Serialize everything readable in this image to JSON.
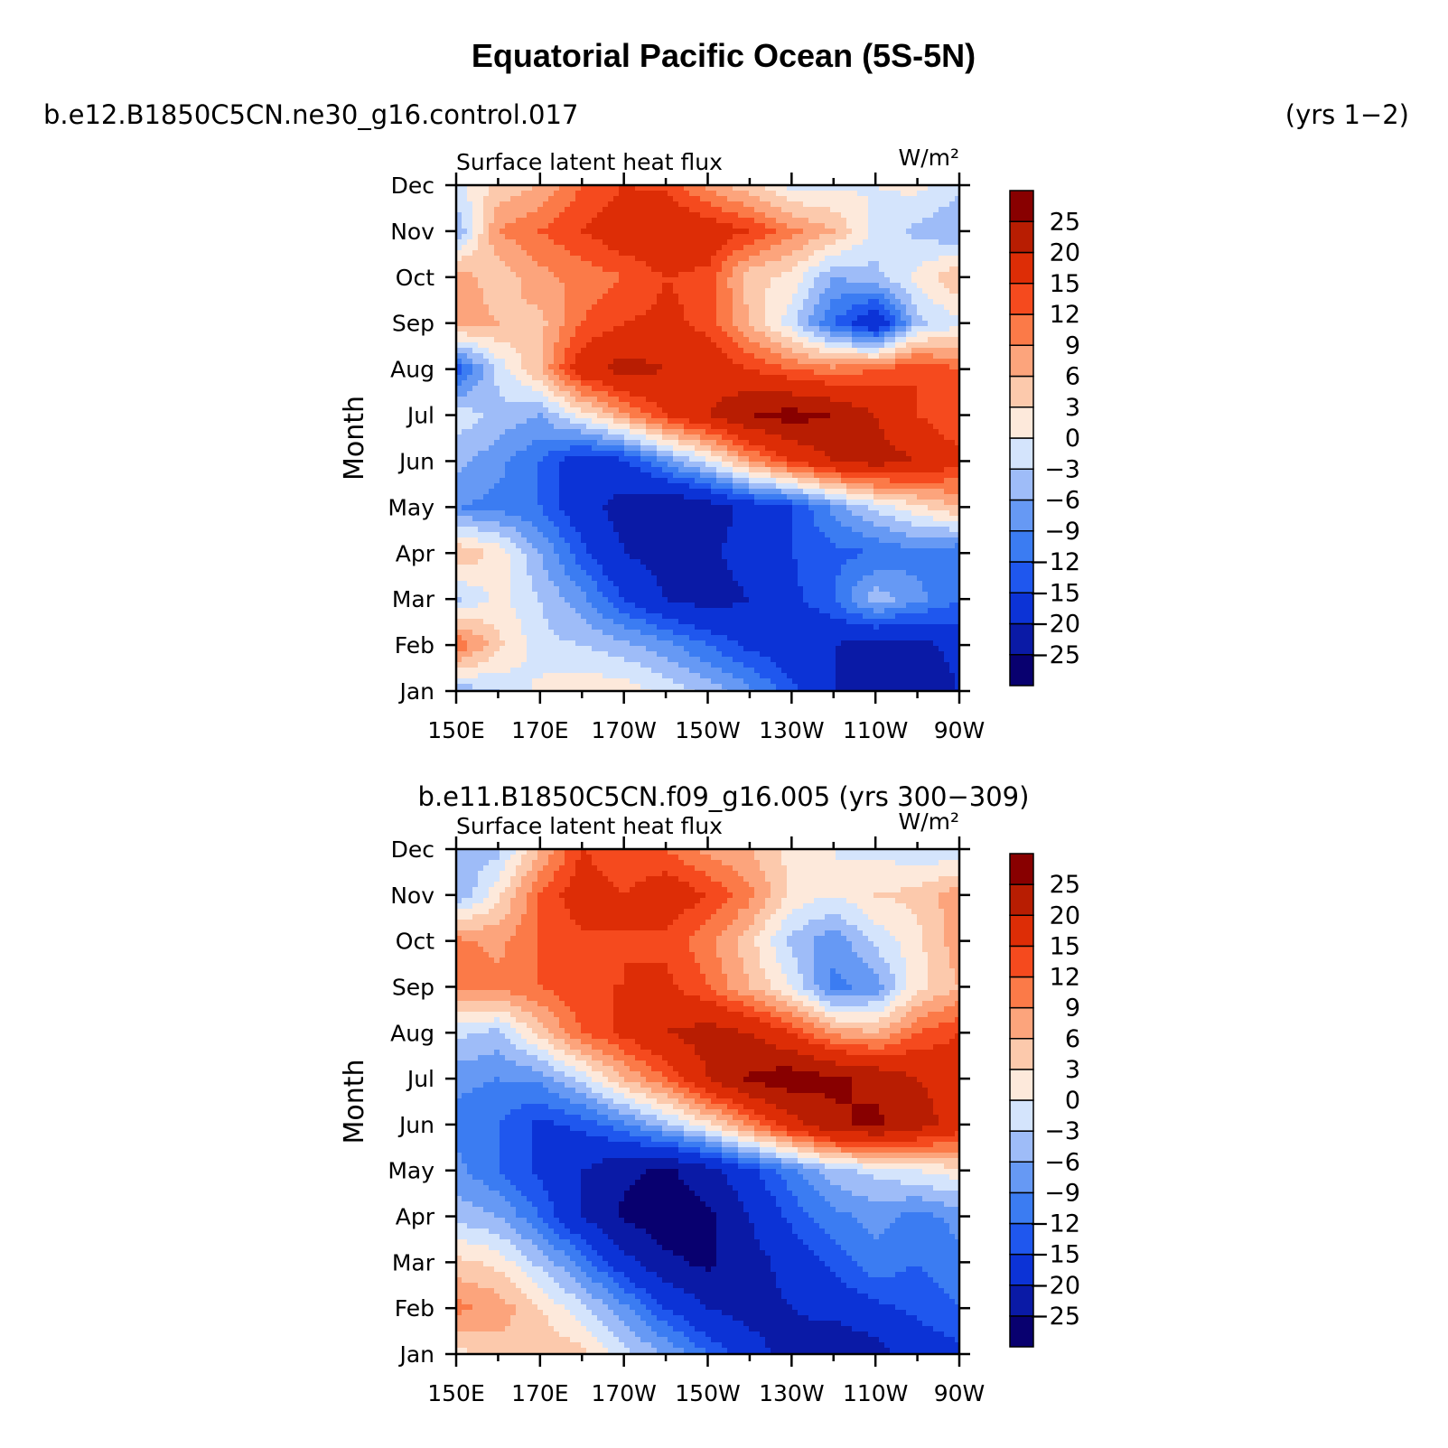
{
  "figure": {
    "title": "Equatorial Pacific Ocean (5S-5N)",
    "case1_label": "b.e12.B1850C5CN.ne30_g16.control.017",
    "case1_years": "(yrs 1−2)",
    "case2_label": "b.e11.B1850C5CN.f09_g16.005 (yrs 300−309)"
  },
  "chart_data": [
    {
      "type": "heatmap",
      "title": "Surface latent heat flux",
      "units": "W/m²",
      "ylabel": "Month",
      "xlabel": "",
      "x_tick_labels": [
        "150E",
        "170E",
        "170W",
        "150W",
        "130W",
        "110W",
        "90W"
      ],
      "y_tick_labels": [
        "Jan",
        "Feb",
        "Mar",
        "Apr",
        "May",
        "Jun",
        "Jul",
        "Aug",
        "Sep",
        "Oct",
        "Nov",
        "Dec"
      ],
      "xlim_deg_east": [
        150,
        270
      ],
      "levels": [
        -25,
        -20,
        -15,
        -12,
        -9,
        -6,
        -3,
        0,
        3,
        6,
        9,
        12,
        15,
        20,
        25
      ],
      "level_labels": [
        "−25",
        "−20",
        "−15",
        "−12",
        "−9",
        "−6",
        "−3",
        "0",
        "3",
        "6",
        "9",
        "12",
        "15",
        "20",
        "25"
      ],
      "colors": [
        "#08006f",
        "#0a1aa6",
        "#0c33d6",
        "#1f57ee",
        "#3b7cf2",
        "#6699f4",
        "#9ebcf8",
        "#d4e4fc",
        "#fde9db",
        "#fcc9ac",
        "#fca47c",
        "#fb7a48",
        "#f54a1e",
        "#dd2d06",
        "#b81d02",
        "#880000"
      ],
      "approx_values_rows_jan_to_dec_cols_150E_to_90W": [
        [
          -5,
          -3,
          1,
          2,
          2,
          -1,
          -4,
          -8,
          -14,
          -20,
          -25,
          -24,
          -20
        ],
        [
          12,
          4,
          -2,
          -3,
          -5,
          -8,
          -12,
          -16,
          -18,
          -20,
          -22,
          -22,
          -18
        ],
        [
          -4,
          1,
          -3,
          -8,
          -15,
          -20,
          -22,
          -20,
          -16,
          -12,
          -4,
          -8,
          -12
        ],
        [
          6,
          2,
          -6,
          -14,
          -20,
          -22,
          -21,
          -18,
          -15,
          -13,
          -12,
          -10,
          -12
        ],
        [
          -9,
          -10,
          -12,
          -18,
          -22,
          -25,
          -23,
          -18,
          -15,
          -8,
          -2,
          2,
          6
        ],
        [
          -5,
          -8,
          -12,
          -18,
          -16,
          -8,
          -1,
          8,
          15,
          20,
          22,
          20,
          16
        ],
        [
          -1,
          -4,
          -6,
          1,
          8,
          15,
          20,
          25,
          27,
          25,
          20,
          15,
          12
        ],
        [
          -14,
          -2,
          6,
          18,
          22,
          20,
          18,
          15,
          12,
          10,
          12,
          15,
          12
        ],
        [
          8,
          6,
          5,
          12,
          15,
          16,
          14,
          6,
          -2,
          -12,
          -20,
          -4,
          -1
        ],
        [
          8,
          4,
          8,
          10,
          12,
          15,
          14,
          4,
          2,
          -6,
          -4,
          1,
          6
        ],
        [
          -6,
          9,
          12,
          15,
          18,
          20,
          18,
          15,
          10,
          6,
          -1,
          -4,
          -6
        ],
        [
          -1,
          4,
          6,
          12,
          15,
          14,
          8,
          4,
          -1,
          -1,
          0,
          1,
          -2
        ]
      ]
    },
    {
      "type": "heatmap",
      "title": "Surface latent heat flux",
      "units": "W/m²",
      "ylabel": "Month",
      "xlabel": "",
      "x_tick_labels": [
        "150E",
        "170E",
        "170W",
        "150W",
        "130W",
        "110W",
        "90W"
      ],
      "y_tick_labels": [
        "Jan",
        "Feb",
        "Mar",
        "Apr",
        "May",
        "Jun",
        "Jul",
        "Aug",
        "Sep",
        "Oct",
        "Nov",
        "Dec"
      ],
      "xlim_deg_east": [
        150,
        270
      ],
      "levels": [
        -25,
        -20,
        -15,
        -12,
        -9,
        -6,
        -3,
        0,
        3,
        6,
        9,
        12,
        15,
        20,
        25
      ],
      "level_labels": [
        "−25",
        "−20",
        "−15",
        "−12",
        "−9",
        "−6",
        "−3",
        "0",
        "3",
        "6",
        "9",
        "12",
        "15",
        "20",
        "25"
      ],
      "colors": [
        "#08006f",
        "#0a1aa6",
        "#0c33d6",
        "#1f57ee",
        "#3b7cf2",
        "#6699f4",
        "#9ebcf8",
        "#d4e4fc",
        "#fde9db",
        "#fcc9ac",
        "#fca47c",
        "#fb7a48",
        "#f54a1e",
        "#dd2d06",
        "#b81d02",
        "#880000"
      ],
      "approx_values_rows_jan_to_dec_cols_150E_to_90W": [
        [
          2,
          4,
          6,
          4,
          -2,
          -6,
          -12,
          -18,
          -22,
          -25,
          -22,
          -18,
          -16
        ],
        [
          10,
          8,
          3,
          -2,
          -8,
          -15,
          -20,
          -22,
          -20,
          -18,
          -16,
          -14,
          -12
        ],
        [
          4,
          2,
          -4,
          -10,
          -18,
          -24,
          -26,
          -22,
          -18,
          -14,
          -10,
          -12,
          -10
        ],
        [
          -4,
          -6,
          -12,
          -20,
          -26,
          -28,
          -26,
          -20,
          -14,
          -10,
          -8,
          -10,
          -8
        ],
        [
          -8,
          -12,
          -16,
          -20,
          -24,
          -26,
          -22,
          -16,
          -10,
          -4,
          -2,
          0,
          2
        ],
        [
          -10,
          -12,
          -16,
          -14,
          -10,
          -4,
          2,
          10,
          18,
          24,
          26,
          22,
          18
        ],
        [
          -8,
          -9,
          -8,
          -2,
          6,
          12,
          20,
          26,
          28,
          26,
          24,
          20,
          18
        ],
        [
          -2,
          -4,
          4,
          12,
          16,
          20,
          22,
          20,
          15,
          8,
          6,
          12,
          15
        ],
        [
          10,
          10,
          12,
          15,
          15,
          16,
          12,
          6,
          0,
          -10,
          -8,
          2,
          6
        ],
        [
          10,
          8,
          12,
          14,
          15,
          14,
          10,
          4,
          -4,
          -8,
          -2,
          2,
          8
        ],
        [
          -6,
          2,
          12,
          18,
          15,
          18,
          15,
          10,
          2,
          0,
          3,
          4,
          8
        ],
        [
          -6,
          -4,
          6,
          15,
          12,
          12,
          8,
          6,
          2,
          0,
          -1,
          -2,
          -3
        ]
      ]
    }
  ]
}
